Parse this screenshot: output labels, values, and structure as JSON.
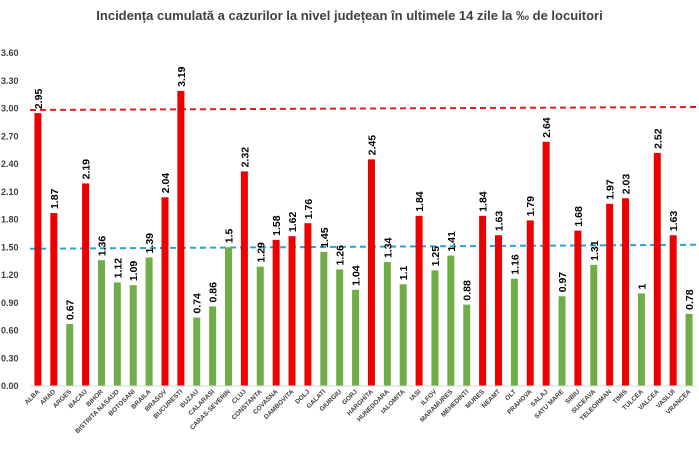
{
  "chart_data": {
    "type": "bar",
    "title": "Incidența cumulată a cazurilor la nivel județean în ultimele 14 zile la ‰ de locuitori",
    "categories": [
      "ALBA",
      "ARAD",
      "ARGES",
      "BACAU",
      "BIHOR",
      "BISTRITA NASAUD",
      "BOTOSANI",
      "BRAILA",
      "BRASOV",
      "BUCURESTI",
      "BUZAU",
      "CALARASI",
      "CARAS-SEVERIN",
      "CLUJ",
      "CONSTANTA",
      "COVASNA",
      "DAMBOVITA",
      "DOLJ",
      "GALATI",
      "GIURGIU",
      "GORJ",
      "HARGHITA",
      "HUNEDOARA",
      "IALOMITA",
      "IASI",
      "ILFOV",
      "MARAMURES",
      "MEHEDINTI",
      "MURES",
      "NEAMT",
      "OLT",
      "PRAHOVA",
      "SALAJ",
      "SATU MARE",
      "SIBIU",
      "SUCEAVA",
      "TELEORMAN",
      "TIMIS",
      "TULCEA",
      "VALCEA",
      "VASLUI",
      "VRANCEA"
    ],
    "values": [
      2.95,
      1.87,
      0.67,
      2.19,
      1.36,
      1.12,
      1.09,
      1.39,
      2.04,
      3.19,
      0.74,
      0.86,
      1.5,
      2.32,
      1.29,
      1.58,
      1.62,
      1.76,
      1.45,
      1.26,
      1.04,
      2.45,
      1.34,
      1.1,
      1.84,
      1.25,
      1.41,
      0.88,
      1.84,
      1.63,
      1.16,
      1.79,
      2.64,
      0.97,
      1.68,
      1.31,
      1.97,
      2.03,
      1,
      2.52,
      1.63,
      0.78
    ],
    "value_labels": [
      "2.95",
      "1.87",
      "0.67",
      "2.19",
      "1.36",
      "1.12",
      "1.09",
      "1.39",
      "2.04",
      "3.19",
      "0.74",
      "0.86",
      "1.5",
      "2.32",
      "1.29",
      "1.58",
      "1.62",
      "1.76",
      "1.45",
      "1.26",
      "1.04",
      "2.45",
      "1.34",
      "1.1",
      "1.84",
      "1.25",
      "1.41",
      "0.88",
      "1.84",
      "1.63",
      "1.16",
      "1.79",
      "2.64",
      "0.97",
      "1.68",
      "1.31",
      "1.97",
      "2.03",
      "1",
      "2.52",
      "1.63",
      "0.78"
    ],
    "yticks": [
      "0.00",
      "0.30",
      "0.60",
      "0.90",
      "1.20",
      "1.50",
      "1.80",
      "2.10",
      "2.40",
      "2.70",
      "3.00",
      "3.30",
      "3.60"
    ],
    "ylim": [
      0,
      3.6
    ],
    "reference_lines": [
      {
        "value": 3.0,
        "color": "#e02020",
        "style": "dashed"
      },
      {
        "value": 1.5,
        "color": "#29a3d6",
        "style": "dashed"
      }
    ],
    "color_rule": {
      "threshold": 1.5,
      "above_color": "#ee0000",
      "below_color": "#70ad47"
    },
    "grid": false,
    "legend": "none"
  }
}
